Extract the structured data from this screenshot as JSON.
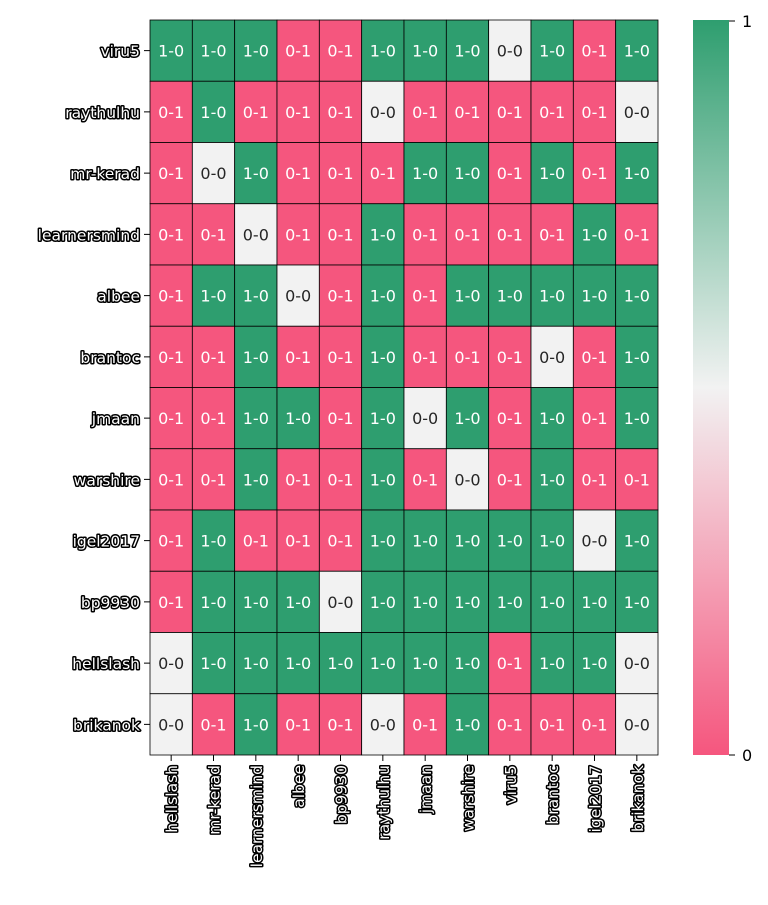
{
  "chart_data": {
    "type": "heatmap",
    "title": "",
    "xlabel": "",
    "ylabel": "",
    "rows": [
      "viru5",
      "raythulhu",
      "mr-kerad",
      "learnersmind",
      "albee",
      "brantoc",
      "jmaan",
      "warshire",
      "igel2017",
      "bp9930",
      "hellslash",
      "brikanok"
    ],
    "columns": [
      "hellslash",
      "mr-kerad",
      "learnersmind",
      "albee",
      "bp9930",
      "raythulhu",
      "jmaan",
      "warshire",
      "viru5",
      "brantoc",
      "igel2017",
      "brikanok"
    ],
    "cells": [
      [
        "1-0",
        "1-0",
        "1-0",
        "0-1",
        "0-1",
        "1-0",
        "1-0",
        "1-0",
        "0-0",
        "1-0",
        "0-1",
        "1-0"
      ],
      [
        "0-1",
        "1-0",
        "0-1",
        "0-1",
        "0-1",
        "0-0",
        "0-1",
        "0-1",
        "0-1",
        "0-1",
        "0-1",
        "0-0"
      ],
      [
        "0-1",
        "0-0",
        "1-0",
        "0-1",
        "0-1",
        "0-1",
        "1-0",
        "1-0",
        "0-1",
        "1-0",
        "0-1",
        "1-0"
      ],
      [
        "0-1",
        "0-1",
        "0-0",
        "0-1",
        "0-1",
        "1-0",
        "0-1",
        "0-1",
        "0-1",
        "0-1",
        "1-0",
        "0-1"
      ],
      [
        "0-1",
        "1-0",
        "1-0",
        "0-0",
        "0-1",
        "1-0",
        "0-1",
        "1-0",
        "1-0",
        "1-0",
        "1-0",
        "1-0"
      ],
      [
        "0-1",
        "0-1",
        "1-0",
        "0-1",
        "0-1",
        "1-0",
        "0-1",
        "0-1",
        "0-1",
        "0-0",
        "0-1",
        "1-0"
      ],
      [
        "0-1",
        "0-1",
        "1-0",
        "1-0",
        "0-1",
        "1-0",
        "0-0",
        "1-0",
        "0-1",
        "1-0",
        "0-1",
        "1-0"
      ],
      [
        "0-1",
        "0-1",
        "1-0",
        "0-1",
        "0-1",
        "1-0",
        "0-1",
        "0-0",
        "0-1",
        "1-0",
        "0-1",
        "0-1"
      ],
      [
        "0-1",
        "1-0",
        "0-1",
        "0-1",
        "0-1",
        "1-0",
        "1-0",
        "1-0",
        "1-0",
        "1-0",
        "0-0",
        "1-0"
      ],
      [
        "0-1",
        "1-0",
        "1-0",
        "1-0",
        "0-0",
        "1-0",
        "1-0",
        "1-0",
        "1-0",
        "1-0",
        "1-0",
        "1-0"
      ],
      [
        "0-0",
        "1-0",
        "1-0",
        "1-0",
        "1-0",
        "1-0",
        "1-0",
        "1-0",
        "0-1",
        "1-0",
        "1-0",
        "0-0"
      ],
      [
        "0-0",
        "0-1",
        "1-0",
        "0-1",
        "0-1",
        "0-0",
        "0-1",
        "1-0",
        "0-1",
        "0-1",
        "0-1",
        "0-0"
      ]
    ],
    "values": [
      [
        1,
        1,
        1,
        0,
        0,
        1,
        1,
        1,
        0.5,
        1,
        0,
        1
      ],
      [
        0,
        1,
        0,
        0,
        0,
        0.5,
        0,
        0,
        0,
        0,
        0,
        0.5
      ],
      [
        0,
        0.5,
        1,
        0,
        0,
        0,
        1,
        1,
        0,
        1,
        0,
        1
      ],
      [
        0,
        0,
        0.5,
        0,
        0,
        1,
        0,
        0,
        0,
        0,
        1,
        0
      ],
      [
        0,
        1,
        1,
        0.5,
        0,
        1,
        0,
        1,
        1,
        1,
        1,
        1
      ],
      [
        0,
        0,
        1,
        0,
        0,
        1,
        0,
        0,
        0,
        0.5,
        0,
        1
      ],
      [
        0,
        0,
        1,
        1,
        0,
        1,
        0.5,
        1,
        0,
        1,
        0,
        1
      ],
      [
        0,
        0,
        1,
        0,
        0,
        1,
        0,
        0.5,
        0,
        1,
        0,
        0
      ],
      [
        0,
        1,
        0,
        0,
        0,
        1,
        1,
        1,
        1,
        1,
        0.5,
        1
      ],
      [
        0,
        1,
        1,
        1,
        0.5,
        1,
        1,
        1,
        1,
        1,
        1,
        1
      ],
      [
        0.5,
        1,
        1,
        1,
        1,
        1,
        1,
        1,
        0,
        1,
        1,
        0.5
      ],
      [
        0.5,
        0,
        1,
        0,
        0,
        0.5,
        0,
        1,
        0,
        0,
        0,
        0.5
      ]
    ],
    "colorbar": {
      "min": 0,
      "max": 1,
      "tick_labels": [
        "1",
        "0"
      ],
      "low_color": "#f5567e",
      "mid_color": "#f2f2f2",
      "high_color": "#2e9e6f"
    },
    "cell_text_colors": {
      "dark_bg": "#ffffff",
      "light_bg": "#262626"
    }
  }
}
